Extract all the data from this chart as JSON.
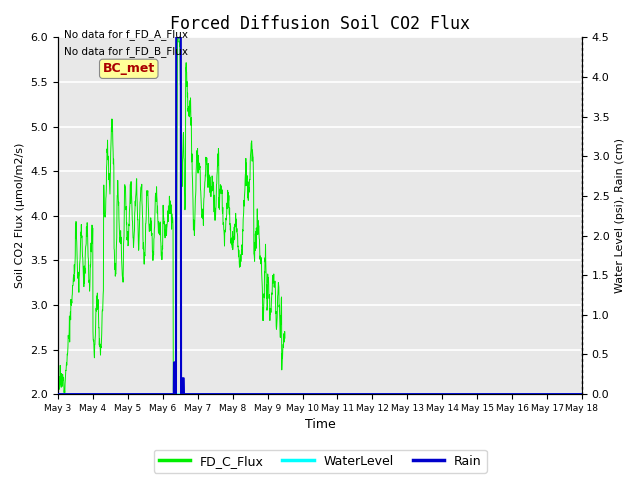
{
  "title": "Forced Diffusion Soil CO2 Flux",
  "xlabel": "Time",
  "ylabel_left": "Soil CO2 Flux (μmol/m2/s)",
  "ylabel_right": "Water Level (psi), Rain (cm)",
  "no_data_text": [
    "No data for f_FD_A_Flux",
    "No data for f_FD_B_Flux"
  ],
  "bc_met_label": "BC_met",
  "bc_met_color": "#aa0000",
  "bc_met_bg": "#ffff99",
  "ylim_left": [
    2.0,
    6.0
  ],
  "ylim_right": [
    0.0,
    4.5
  ],
  "yticks_left": [
    2.0,
    2.5,
    3.0,
    3.5,
    4.0,
    4.5,
    5.0,
    5.5,
    6.0
  ],
  "yticks_right": [
    0.0,
    0.5,
    1.0,
    1.5,
    2.0,
    2.5,
    3.0,
    3.5,
    4.0,
    4.5
  ],
  "xtick_labels": [
    "May 3",
    "May 4",
    "May 5",
    "May 6",
    "May 7",
    "May 8",
    "May 9",
    "May 10",
    "May 11",
    "May 12",
    "May 13",
    "May 14",
    "May 15",
    "May 16",
    "May 17",
    "May 18"
  ],
  "plot_bg_color": "#e8e8e8",
  "grid_color": "#ffffff",
  "line_fd_c_color": "#00ee00",
  "line_water_color": "#00ffff",
  "line_rain_color": "#0000cc",
  "legend_labels": [
    "FD_C_Flux",
    "WaterLevel",
    "Rain"
  ]
}
